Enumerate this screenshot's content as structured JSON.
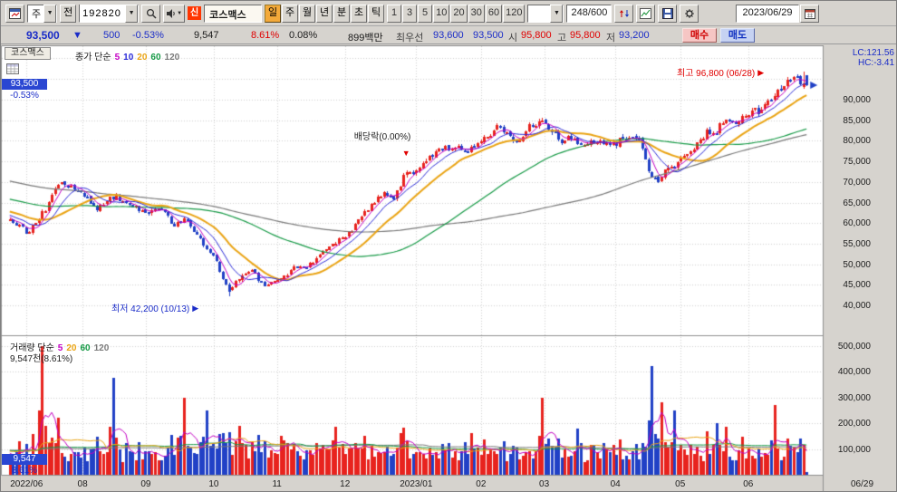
{
  "toolbar": {
    "period_select": "주",
    "prev_label": "전",
    "code_input": "192820",
    "credit_badge": "신",
    "stock_name": "코스맥스",
    "period_buttons": [
      "일",
      "주",
      "월",
      "년",
      "분",
      "초",
      "틱"
    ],
    "active_period_index": 0,
    "interval_buttons": [
      "1",
      "3",
      "5",
      "10",
      "20",
      "30",
      "60",
      "120"
    ],
    "candle_count_display": "248/600",
    "date": "2023/06/29"
  },
  "info_bar": {
    "price": "93,500",
    "change_arrow": "▼",
    "change": "500",
    "change_pct": "-0.53%",
    "volume": "9,547",
    "volume_ratio": "8.61%",
    "turnover": "0.08%",
    "amount": "899백만",
    "best_label": "최우선",
    "best_ask": "93,600",
    "best_bid": "93,500",
    "open_label": "시",
    "open": "95,800",
    "high_label": "고",
    "high": "95,800",
    "low_label": "저",
    "low": "93,200",
    "buy_label": "매수",
    "sell_label": "매도"
  },
  "price_chart": {
    "title": "코스맥스",
    "legend_label": "종가 단순",
    "ma_periods": [
      "5",
      "10",
      "20",
      "60",
      "120"
    ],
    "annotation_high": "최고 96,800 (06/28)",
    "annotation_low": "최저 42,200 (10/13)",
    "annotation_dividend": "배당락(0.00%)",
    "lc_label": "LC:121.56",
    "hc_label": "HC:-3.41",
    "current_price": "93,500",
    "current_pct": "-0.53%",
    "y_labels": [
      "90,000",
      "85,000",
      "80,000",
      "75,000",
      "70,000",
      "65,000",
      "60,000",
      "55,000",
      "50,000",
      "45,000",
      "40,000"
    ]
  },
  "volume_chart": {
    "legend_label": "거래량 단순",
    "ma_periods": [
      "5",
      "20",
      "60",
      "120"
    ],
    "current_text": "9,547천(8.61%)",
    "current_volume": "9,547",
    "current_pct": "8.61%",
    "y_labels": [
      "500,000",
      "400,000",
      "300,000",
      "200,000",
      "100,000"
    ]
  },
  "x_axis": {
    "last_date": "06/29"
  },
  "chart_data": {
    "type": "candlestick",
    "candle_count": 248,
    "price_axis": {
      "min": 40000,
      "max": 95000,
      "step": 5000
    },
    "plot_price_range": [
      33000,
      102500
    ],
    "volume_axis": {
      "max": 500000,
      "step": 100000
    },
    "plot_volume_max": 530000,
    "prev_close": 94000,
    "last_open": 95800,
    "last_high": 95800,
    "last_low": 93200,
    "last_close": 93500,
    "last_volume": 9547,
    "high_marker": {
      "f": 0.996,
      "price": 96800,
      "date": "06/28"
    },
    "low_marker": {
      "f": 0.274,
      "price": 42200,
      "date": "10/13"
    },
    "dividend_marker": {
      "f": 0.498,
      "label": "배당락(0.00%)"
    },
    "month_ticks": [
      {
        "label": "2022/06",
        "f": 0.023
      },
      {
        "label": "08",
        "f": 0.093
      },
      {
        "label": "09",
        "f": 0.172
      },
      {
        "label": "10",
        "f": 0.257
      },
      {
        "label": "11",
        "f": 0.336
      },
      {
        "label": "12",
        "f": 0.421
      },
      {
        "label": "2023/01",
        "f": 0.51
      },
      {
        "label": "02",
        "f": 0.591
      },
      {
        "label": "03",
        "f": 0.67
      },
      {
        "label": "04",
        "f": 0.759
      },
      {
        "label": "05",
        "f": 0.84
      },
      {
        "label": "06",
        "f": 0.925
      }
    ],
    "price_anchors": [
      [
        0.0,
        61000
      ],
      [
        0.022,
        57800
      ],
      [
        0.045,
        63500
      ],
      [
        0.064,
        70500
      ],
      [
        0.08,
        68500
      ],
      [
        0.093,
        67000
      ],
      [
        0.11,
        63500
      ],
      [
        0.13,
        66500
      ],
      [
        0.15,
        64500
      ],
      [
        0.172,
        62000
      ],
      [
        0.188,
        64000
      ],
      [
        0.205,
        59500
      ],
      [
        0.222,
        61000
      ],
      [
        0.24,
        55500
      ],
      [
        0.257,
        51500
      ],
      [
        0.264,
        47500
      ],
      [
        0.274,
        43500
      ],
      [
        0.288,
        46500
      ],
      [
        0.302,
        48800
      ],
      [
        0.318,
        44800
      ],
      [
        0.336,
        45800
      ],
      [
        0.348,
        47500
      ],
      [
        0.358,
        50200
      ],
      [
        0.368,
        48600
      ],
      [
        0.385,
        51500
      ],
      [
        0.4,
        54500
      ],
      [
        0.421,
        56800
      ],
      [
        0.433,
        59500
      ],
      [
        0.445,
        62500
      ],
      [
        0.457,
        65000
      ],
      [
        0.47,
        67500
      ],
      [
        0.482,
        66200
      ],
      [
        0.498,
        72800
      ],
      [
        0.505,
        71800
      ],
      [
        0.515,
        74000
      ],
      [
        0.53,
        76500
      ],
      [
        0.548,
        78200
      ],
      [
        0.562,
        79000
      ],
      [
        0.573,
        77800
      ],
      [
        0.591,
        79800
      ],
      [
        0.602,
        81800
      ],
      [
        0.614,
        83200
      ],
      [
        0.625,
        81000
      ],
      [
        0.637,
        80200
      ],
      [
        0.652,
        83500
      ],
      [
        0.67,
        84600
      ],
      [
        0.682,
        81800
      ],
      [
        0.692,
        80000
      ],
      [
        0.703,
        81200
      ],
      [
        0.715,
        78800
      ],
      [
        0.727,
        80200
      ],
      [
        0.74,
        79400
      ],
      [
        0.759,
        79000
      ],
      [
        0.768,
        80600
      ],
      [
        0.78,
        81200
      ],
      [
        0.792,
        79600
      ],
      [
        0.8,
        73600
      ],
      [
        0.808,
        70800
      ],
      [
        0.813,
        69800
      ],
      [
        0.822,
        72800
      ],
      [
        0.84,
        74800
      ],
      [
        0.85,
        76600
      ],
      [
        0.858,
        78200
      ],
      [
        0.866,
        80200
      ],
      [
        0.874,
        82200
      ],
      [
        0.881,
        80600
      ],
      [
        0.889,
        83200
      ],
      [
        0.898,
        85200
      ],
      [
        0.908,
        84200
      ],
      [
        0.925,
        86400
      ],
      [
        0.934,
        88200
      ],
      [
        0.942,
        86800
      ],
      [
        0.95,
        89400
      ],
      [
        0.96,
        91400
      ],
      [
        0.97,
        93600
      ],
      [
        0.98,
        95400
      ],
      [
        0.99,
        95000
      ],
      [
        1.0,
        93500
      ]
    ],
    "volume_spikes": [
      [
        0.04,
        500000
      ],
      [
        0.059,
        220000
      ],
      [
        0.129,
        375000
      ],
      [
        0.217,
        300000
      ],
      [
        0.248,
        250000
      ],
      [
        0.288,
        190000
      ],
      [
        0.342,
        150000
      ],
      [
        0.41,
        185000
      ],
      [
        0.444,
        150000
      ],
      [
        0.489,
        160000
      ],
      [
        0.58,
        160000
      ],
      [
        0.67,
        300000
      ],
      [
        0.712,
        180000
      ],
      [
        0.804,
        420000
      ],
      [
        0.818,
        280000
      ],
      [
        0.835,
        250000
      ],
      [
        0.886,
        200000
      ],
      [
        0.897,
        185000
      ],
      [
        0.959,
        270000
      ],
      [
        0.976,
        140000
      ]
    ],
    "ma_periods_price": [
      5,
      10,
      20,
      60,
      120
    ],
    "ma_periods_volume": [
      5,
      20,
      60,
      120
    ],
    "colors": {
      "up": "#e8231e",
      "down": "#2141c6",
      "ma5": "#c400c4",
      "ma10": "#2a2ad8",
      "ma20": "#eaa414",
      "ma60": "#169a46",
      "ma120": "#7a7a7a",
      "grid": "#d2d2d2",
      "frame": "#8f8f8f",
      "box_bg": "#2a46d2",
      "blue": "#1a2cc8",
      "red": "#e00000"
    }
  }
}
